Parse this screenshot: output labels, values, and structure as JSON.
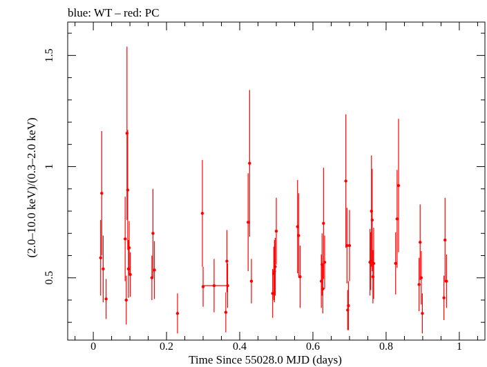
{
  "chart_data": {
    "type": "scatter",
    "title": "blue: WT – red: PC",
    "xlabel": "Time Since 55028.0 MJD (days)",
    "ylabel": "(2.0–10.0 keV)/(0.3–2.0 keV)",
    "xlim": [
      -0.07,
      1.07
    ],
    "ylim": [
      0.22,
      1.65
    ],
    "xticks": [
      0,
      0.2,
      0.4,
      0.6,
      0.8,
      1
    ],
    "xtick_labels": [
      "0",
      "0.2",
      "0.4",
      "0.6",
      "0.8",
      "1"
    ],
    "yticks": [
      0.5,
      1,
      1.5
    ],
    "ytick_labels": [
      "0.5",
      "1",
      "1.5"
    ],
    "grid": false,
    "series": [
      {
        "color": "#ff0000",
        "points": [
          {
            "x": 0.02,
            "y": 0.59,
            "err": 0.17
          },
          {
            "x": 0.023,
            "y": 0.88,
            "err": 0.28
          },
          {
            "x": 0.027,
            "y": 0.54,
            "err": 0.15
          },
          {
            "x": 0.035,
            "y": 0.405,
            "err": 0.09
          },
          {
            "x": 0.087,
            "y": 0.675,
            "err": 0.19
          },
          {
            "x": 0.09,
            "y": 0.4,
            "err": 0.11
          },
          {
            "x": 0.092,
            "y": 1.15,
            "err": 0.39
          },
          {
            "x": 0.094,
            "y": 0.895,
            "err": 0.27
          },
          {
            "x": 0.096,
            "y": 0.54,
            "err": 0.13
          },
          {
            "x": 0.098,
            "y": 0.635,
            "err": 0.12
          },
          {
            "x": 0.101,
            "y": 0.515,
            "err": 0.1
          },
          {
            "x": 0.16,
            "y": 0.5,
            "err": 0.1
          },
          {
            "x": 0.163,
            "y": 0.7,
            "err": 0.2
          },
          {
            "x": 0.167,
            "y": 0.535,
            "err": 0.13
          },
          {
            "x": 0.23,
            "y": 0.34,
            "err": 0.09
          },
          {
            "x": 0.298,
            "y": 0.79,
            "err": 0.24
          },
          {
            "x": 0.3,
            "y": 0.46,
            "err": 0.09
          },
          {
            "x": 0.33,
            "y": 0.465,
            "err": 0.12,
            "xerr": 0.033
          },
          {
            "x": 0.362,
            "y": 0.345,
            "err": 0.09
          },
          {
            "x": 0.365,
            "y": 0.575,
            "err": 0.14
          },
          {
            "x": 0.367,
            "y": 0.465,
            "err": 0.1
          },
          {
            "x": 0.423,
            "y": 0.75,
            "err": 0.22
          },
          {
            "x": 0.427,
            "y": 1.015,
            "err": 0.33
          },
          {
            "x": 0.432,
            "y": 0.485,
            "err": 0.1
          },
          {
            "x": 0.49,
            "y": 0.43,
            "err": 0.11
          },
          {
            "x": 0.493,
            "y": 0.52,
            "err": 0.12
          },
          {
            "x": 0.495,
            "y": 0.53,
            "err": 0.14
          },
          {
            "x": 0.497,
            "y": 0.55,
            "err": 0.13
          },
          {
            "x": 0.5,
            "y": 0.71,
            "err": 0.15
          },
          {
            "x": 0.558,
            "y": 0.73,
            "err": 0.21
          },
          {
            "x": 0.561,
            "y": 0.69,
            "err": 0.19
          },
          {
            "x": 0.565,
            "y": 0.505,
            "err": 0.14
          },
          {
            "x": 0.623,
            "y": 0.485,
            "err": 0.12
          },
          {
            "x": 0.625,
            "y": 0.56,
            "err": 0.14
          },
          {
            "x": 0.627,
            "y": 0.45,
            "err": 0.11
          },
          {
            "x": 0.629,
            "y": 0.745,
            "err": 0.25
          },
          {
            "x": 0.632,
            "y": 0.57,
            "err": 0.12
          },
          {
            "x": 0.69,
            "y": 0.935,
            "err": 0.3
          },
          {
            "x": 0.693,
            "y": 0.645,
            "err": 0.17
          },
          {
            "x": 0.695,
            "y": 0.355,
            "err": 0.09
          },
          {
            "x": 0.697,
            "y": 0.375,
            "err": 0.11
          },
          {
            "x": 0.7,
            "y": 0.645,
            "err": 0.16
          },
          {
            "x": 0.756,
            "y": 0.57,
            "err": 0.15
          },
          {
            "x": 0.758,
            "y": 0.575,
            "err": 0.13
          },
          {
            "x": 0.76,
            "y": 0.8,
            "err": 0.25
          },
          {
            "x": 0.762,
            "y": 0.76,
            "err": 0.23
          },
          {
            "x": 0.764,
            "y": 0.505,
            "err": 0.12
          },
          {
            "x": 0.766,
            "y": 0.565,
            "err": 0.16
          },
          {
            "x": 0.826,
            "y": 0.565,
            "err": 0.14
          },
          {
            "x": 0.83,
            "y": 0.765,
            "err": 0.22
          },
          {
            "x": 0.834,
            "y": 0.915,
            "err": 0.3
          },
          {
            "x": 0.89,
            "y": 0.47,
            "err": 0.12
          },
          {
            "x": 0.893,
            "y": 0.66,
            "err": 0.17
          },
          {
            "x": 0.896,
            "y": 0.5,
            "err": 0.12
          },
          {
            "x": 0.899,
            "y": 0.34,
            "err": 0.09
          },
          {
            "x": 0.958,
            "y": 0.41,
            "err": 0.1
          },
          {
            "x": 0.961,
            "y": 0.67,
            "err": 0.19
          },
          {
            "x": 0.965,
            "y": 0.485,
            "err": 0.12
          }
        ]
      }
    ]
  }
}
